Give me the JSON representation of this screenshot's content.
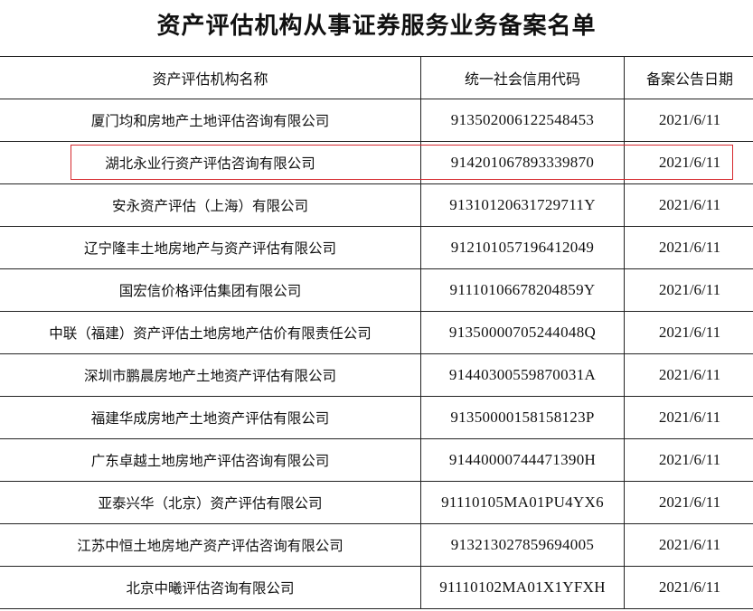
{
  "title": "资产评估机构从事证券服务业务备案名单",
  "columns": [
    "资产评估机构名称",
    "统一社会信用代码",
    "备案公告日期"
  ],
  "rows": [
    {
      "name": "厦门均和房地产土地评估咨询有限公司",
      "code": "913502006122548453",
      "date": "2021/6/11"
    },
    {
      "name": "湖北永业行资产评估咨询有限公司",
      "code": "914201067893339870",
      "date": "2021/6/11",
      "highlighted": true
    },
    {
      "name": "安永资产评估（上海）有限公司",
      "code": "91310120631729711Y",
      "date": "2021/6/11"
    },
    {
      "name": "辽宁隆丰土地房地产与资产评估有限公司",
      "code": "912101057196412049",
      "date": "2021/6/11"
    },
    {
      "name": "国宏信价格评估集团有限公司",
      "code": "91110106678204859Y",
      "date": "2021/6/11"
    },
    {
      "name": "中联（福建）资产评估土地房地产估价有限责任公司",
      "code": "91350000705244048Q",
      "date": "2021/6/11"
    },
    {
      "name": "深圳市鹏晨房地产土地资产评估有限公司",
      "code": "91440300559870031A",
      "date": "2021/6/11"
    },
    {
      "name": "福建华成房地产土地资产评估有限公司",
      "code": "91350000158158123P",
      "date": "2021/6/11"
    },
    {
      "name": "广东卓越土地房地产评估咨询有限公司",
      "code": "91440000744471390H",
      "date": "2021/6/11"
    },
    {
      "name": "亚泰兴华（北京）资产评估有限公司",
      "code": "91110105MA01PU4YX6",
      "date": "2021/6/11"
    },
    {
      "name": "江苏中恒土地房地产资产评估咨询有限公司",
      "code": "913213027859694005",
      "date": "2021/6/11"
    },
    {
      "name": "北京中曦评估咨询有限公司",
      "code": "91110102MA01X1YFXH",
      "date": "2021/6/11"
    }
  ],
  "colors": {
    "highlight_box": "#d6282d",
    "grid": "#222222"
  }
}
